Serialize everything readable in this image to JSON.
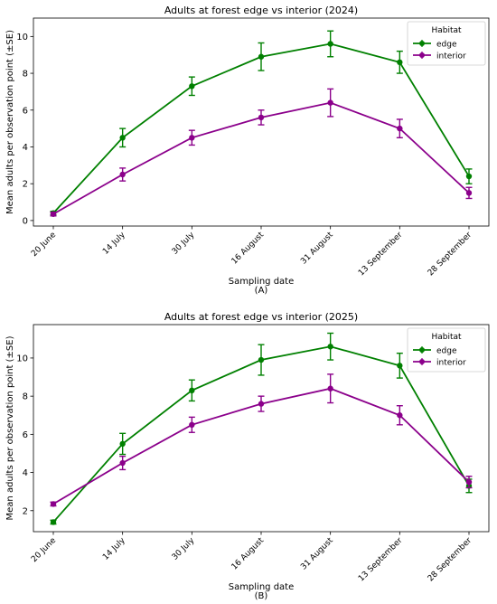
{
  "chart_data": [
    {
      "type": "line",
      "title": "Adults at forest edge vs interior (2024)",
      "xlabel": "Sampling date",
      "ylabel": "Mean adults per observation point (±SE)",
      "panel_label": "(A)",
      "categories": [
        "20 June",
        "14 July",
        "30 July",
        "16 August",
        "31 August",
        "13 September",
        "28 September"
      ],
      "ylim": [
        -0.3,
        11.0
      ],
      "yticks": [
        0,
        2,
        4,
        6,
        8,
        10
      ],
      "grid": false,
      "legend": {
        "title": "Habitat",
        "placement": "top-right"
      },
      "series": [
        {
          "name": "edge",
          "color": "#008000",
          "values": [
            0.4,
            4.5,
            7.3,
            8.9,
            9.6,
            8.6,
            2.4
          ],
          "se": [
            0.1,
            0.5,
            0.5,
            0.75,
            0.7,
            0.6,
            0.4
          ]
        },
        {
          "name": "interior",
          "color": "#8b008b",
          "values": [
            0.35,
            2.5,
            4.5,
            5.6,
            6.4,
            5.0,
            1.5
          ],
          "se": [
            0.1,
            0.35,
            0.4,
            0.4,
            0.75,
            0.5,
            0.3
          ]
        }
      ]
    },
    {
      "type": "line",
      "title": "Adults at forest edge vs interior (2025)",
      "xlabel": "Sampling date",
      "ylabel": "Mean adults per observation point (±SE)",
      "panel_label": "(B)",
      "categories": [
        "20 June",
        "14 July",
        "30 July",
        "16 August",
        "31 August",
        "13 September",
        "28 September"
      ],
      "ylim": [
        0.9,
        11.75
      ],
      "yticks": [
        2,
        4,
        6,
        8,
        10
      ],
      "grid": false,
      "legend": {
        "title": "Habitat",
        "placement": "top-right"
      },
      "series": [
        {
          "name": "edge",
          "color": "#008000",
          "values": [
            1.4,
            5.5,
            8.3,
            9.9,
            10.6,
            9.6,
            3.3
          ],
          "se": [
            0.1,
            0.55,
            0.55,
            0.8,
            0.7,
            0.65,
            0.35
          ]
        },
        {
          "name": "interior",
          "color": "#8b008b",
          "values": [
            2.35,
            4.5,
            6.5,
            7.6,
            8.4,
            7.0,
            3.5
          ],
          "se": [
            0.1,
            0.35,
            0.4,
            0.4,
            0.75,
            0.5,
            0.3
          ]
        }
      ]
    }
  ]
}
